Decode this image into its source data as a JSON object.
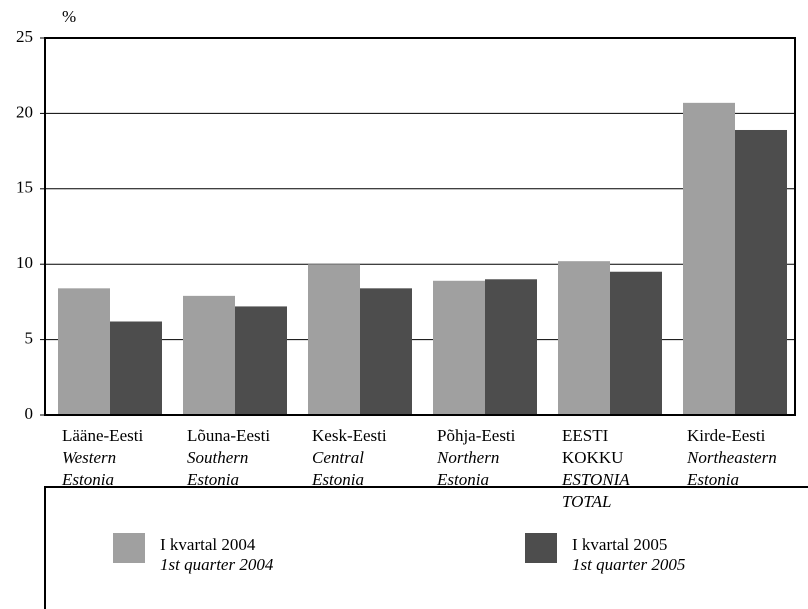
{
  "chart_data": {
    "type": "bar",
    "y_unit": "%",
    "categories": [
      "Lääne-Eesti",
      "Lõuna-Eesti",
      "Kesk-Eesti",
      "Põhja-Eesti",
      "EESTI KOKKU",
      "Kirde-Eesti"
    ],
    "categories_en": [
      "Western Estonia",
      "Southern Estonia",
      "Central Estonia",
      "Northern Estonia",
      "ESTONIA TOTAL",
      "Northeastern Estonia"
    ],
    "series": [
      {
        "name": "I kvartal 2004",
        "name_en": "1st quarter 2004",
        "color": "#a0a0a0",
        "values": [
          8.4,
          7.9,
          10.0,
          8.9,
          10.2,
          20.7
        ]
      },
      {
        "name": "I kvartal 2005",
        "name_en": "1st quarter 2005",
        "color": "#4d4d4d",
        "values": [
          6.2,
          7.2,
          8.4,
          9.0,
          9.5,
          18.9
        ]
      }
    ],
    "ylim": [
      0,
      25
    ],
    "yticks": [
      0,
      5,
      10,
      15,
      20,
      25
    ],
    "grid": true
  }
}
